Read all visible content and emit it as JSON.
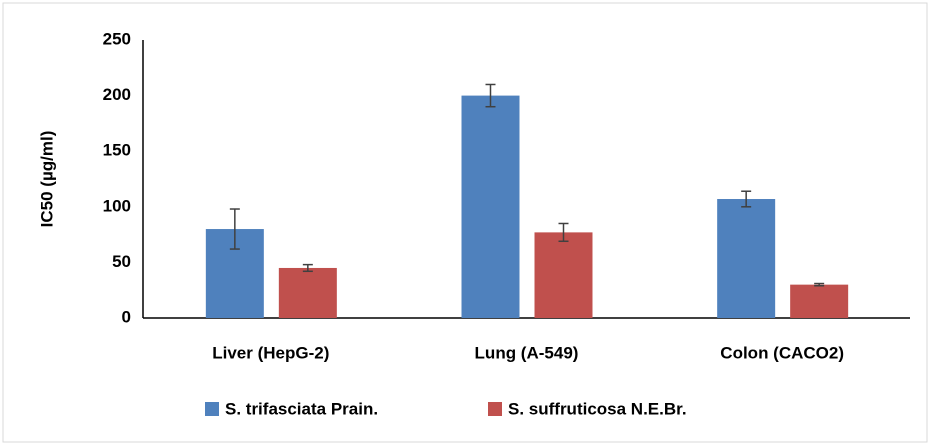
{
  "chart_data": {
    "type": "bar",
    "y_label": "IC50 (µg/ml)",
    "categories": [
      "Liver (HepG-2)",
      "Lung (A-549)",
      "Colon (CACO2)"
    ],
    "series": [
      {
        "name": "S. trifasciata Prain.",
        "color": "#4f81bd",
        "values": [
          80,
          200,
          107
        ],
        "errors": [
          18,
          10,
          7
        ]
      },
      {
        "name": "S. suffruticosa N.E.Br.",
        "color": "#c0504d",
        "values": [
          45,
          77,
          30
        ],
        "errors": [
          3,
          8,
          1
        ]
      }
    ],
    "ylim": [
      0,
      250
    ],
    "yticks": [
      0,
      50,
      100,
      150,
      200,
      250
    ],
    "grid": false,
    "legend": "bottom"
  }
}
